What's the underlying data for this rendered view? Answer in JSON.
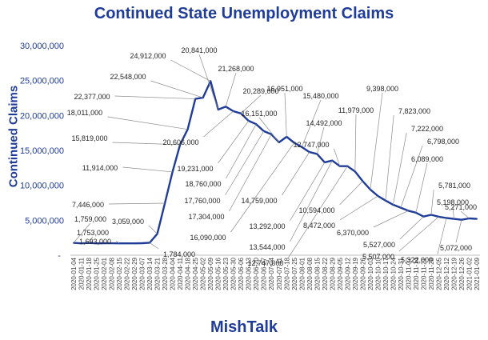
{
  "chart_data": {
    "type": "line",
    "title": "Continued State Unemployment Claims",
    "ylabel": "Continued  Claims",
    "xlabel": "MishTalk",
    "ylim": [
      0,
      30000000
    ],
    "yticks": [
      "-",
      "5,000,000",
      "10,000,000",
      "15,000,000",
      "20,000,000",
      "25,000,000",
      "30,000,000"
    ],
    "line_color": "#1f3c99",
    "text_color": "#1f3c99",
    "x": [
      "2020-01-04",
      "2020-01-11",
      "2020-01-18",
      "2020-01-25",
      "2020-02-01",
      "2020-02-08",
      "2020-02-15",
      "2020-02-22",
      "2020-02-29",
      "2020-03-07",
      "2020-03-14",
      "2020-03-21",
      "2020-03-28",
      "2020-04-04",
      "2020-04-11",
      "2020-04-18",
      "2020-04-25",
      "2020-05-02",
      "2020-05-09",
      "2020-05-16",
      "2020-05-23",
      "2020-05-30",
      "2020-06-06",
      "2020-06-13",
      "2020-06-20",
      "2020-06-27",
      "2020-07-04",
      "2020-07-11",
      "2020-07-18",
      "2020-07-25",
      "2020-08-01",
      "2020-08-08",
      "2020-08-15",
      "2020-08-22",
      "2020-08-29",
      "2020-09-05",
      "2020-09-12",
      "2020-09-19",
      "2020-09-26",
      "2020-10-03",
      "2020-10-10",
      "2020-10-17",
      "2020-10-24",
      "2020-10-31",
      "2020-11-07",
      "2020-11-14",
      "2020-11-21",
      "2020-11-28",
      "2020-12-05",
      "2020-12-12",
      "2020-12-19",
      "2020-12-26",
      "2021-01-02",
      "2021-01-09"
    ],
    "values": [
      1759000,
      1690000,
      1753000,
      1700000,
      1710000,
      1705000,
      1693000,
      1695000,
      1700000,
      1720000,
      1784000,
      3059000,
      7446000,
      11914000,
      15819000,
      18011000,
      22377000,
      22548000,
      24912000,
      20841000,
      21268000,
      20606000,
      20289000,
      19231000,
      18760000,
      17760000,
      17304000,
      16151000,
      16951000,
      16090000,
      15480000,
      14759000,
      14492000,
      13292000,
      13544000,
      12747000,
      12747000,
      11979000,
      10594000,
      9398000,
      8472000,
      7823000,
      7222000,
      6798000,
      6370000,
      6089000,
      5527000,
      5781000,
      5507000,
      5322000,
      5198000,
      5072000,
      5271000,
      5200000
    ],
    "annotations": [
      {
        "i": 0,
        "label": "1,759,000"
      },
      {
        "i": 2,
        "label": "1,753,000"
      },
      {
        "i": 6,
        "label": "1,693,000"
      },
      {
        "i": 10,
        "label": "1,784,000"
      },
      {
        "i": 11,
        "label": "3,059,000"
      },
      {
        "i": 12,
        "label": "7,446,000"
      },
      {
        "i": 13,
        "label": "11,914,000"
      },
      {
        "i": 14,
        "label": "15,819,000"
      },
      {
        "i": 15,
        "label": "18,011,000"
      },
      {
        "i": 16,
        "label": "22,377,000"
      },
      {
        "i": 17,
        "label": "22,548,000"
      },
      {
        "i": 18,
        "label": "24,912,000"
      },
      {
        "i": 19,
        "label": "20,841,000"
      },
      {
        "i": 20,
        "label": "21,268,000"
      },
      {
        "i": 21,
        "label": "20,606,000"
      },
      {
        "i": 22,
        "label": "20,289,000"
      },
      {
        "i": 23,
        "label": "19,231,000"
      },
      {
        "i": 24,
        "label": "18,760,000"
      },
      {
        "i": 25,
        "label": "17,760,000"
      },
      {
        "i": 26,
        "label": "17,304,000"
      },
      {
        "i": 27,
        "label": "16,151,000"
      },
      {
        "i": 28,
        "label": "16,951,000"
      },
      {
        "i": 29,
        "label": "16,090,000"
      },
      {
        "i": 30,
        "label": "15,480,000"
      },
      {
        "i": 31,
        "label": "14,759,000"
      },
      {
        "i": 32,
        "label": "14,492,000"
      },
      {
        "i": 33,
        "label": "13,292,000"
      },
      {
        "i": 34,
        "label": "13,544,000"
      },
      {
        "i": 35,
        "label": "12,747,000"
      },
      {
        "i": 36,
        "label": "12,747,000"
      },
      {
        "i": 37,
        "label": "11,979,000"
      },
      {
        "i": 38,
        "label": "10,594,000"
      },
      {
        "i": 39,
        "label": "9,398,000"
      },
      {
        "i": 40,
        "label": "8,472,000"
      },
      {
        "i": 41,
        "label": "7,823,000"
      },
      {
        "i": 42,
        "label": "7,222,000"
      },
      {
        "i": 43,
        "label": "6,798,000"
      },
      {
        "i": 44,
        "label": "6,370,000"
      },
      {
        "i": 45,
        "label": "6,089,000"
      },
      {
        "i": 46,
        "label": "5,527,000"
      },
      {
        "i": 47,
        "label": "5,781,000"
      },
      {
        "i": 48,
        "label": "5,507,000"
      },
      {
        "i": 49,
        "label": "5,322,000"
      },
      {
        "i": 50,
        "label": "5,198,000"
      },
      {
        "i": 51,
        "label": "5,072,000"
      },
      {
        "i": 52,
        "label": "5,271,000"
      }
    ]
  }
}
